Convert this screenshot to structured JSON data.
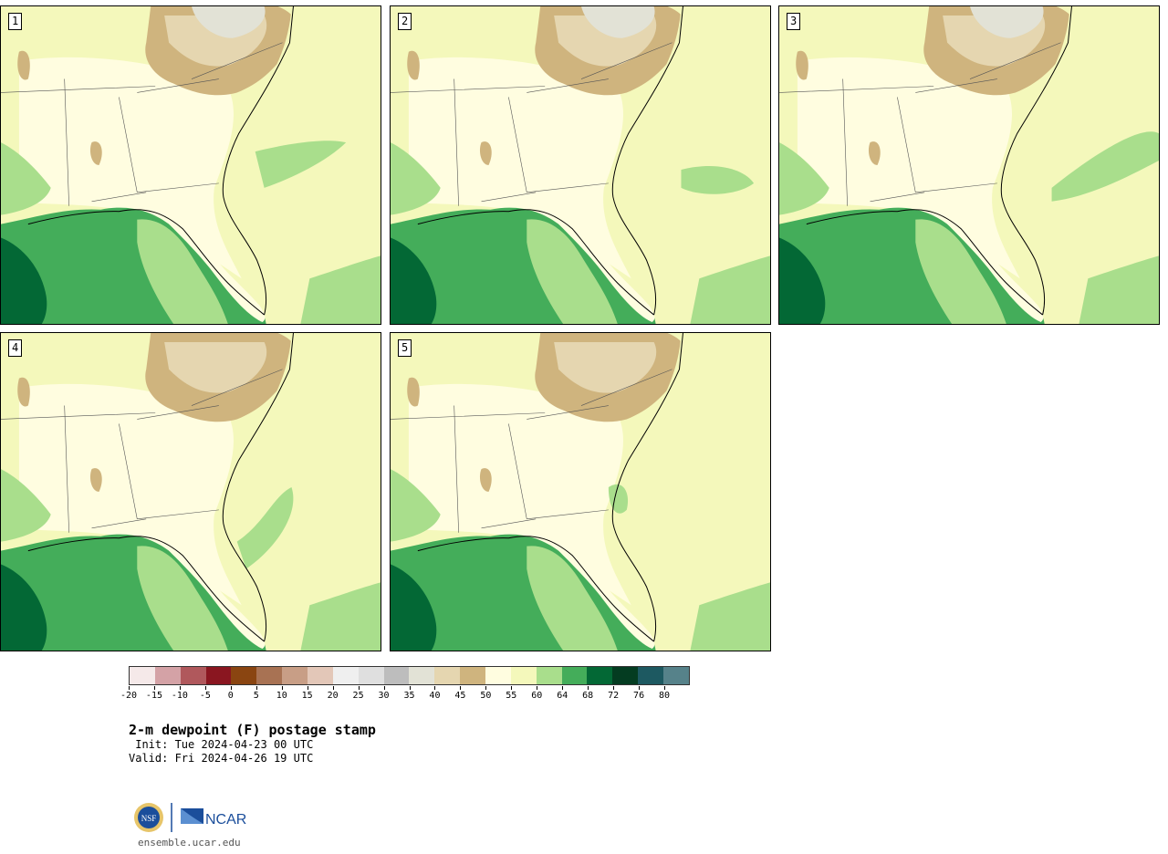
{
  "figure": {
    "title": "2-m dewpoint (F) postage stamp",
    "init": " Init: Tue 2024-04-23 00 UTC",
    "valid": "Valid: Fri 2024-04-26 19 UTC",
    "site": "ensemble.ucar.edu",
    "logo_text": "NCAR",
    "nsf_text": "NSF"
  },
  "panels": [
    {
      "label": "1"
    },
    {
      "label": "2"
    },
    {
      "label": "3"
    },
    {
      "label": "4"
    },
    {
      "label": "5"
    }
  ],
  "colorbar": {
    "ticks": [
      "-20",
      "-15",
      "-10",
      "-5",
      "0",
      "5",
      "10",
      "15",
      "20",
      "25",
      "30",
      "35",
      "40",
      "45",
      "50",
      "55",
      "60",
      "64",
      "68",
      "72",
      "76",
      "80"
    ],
    "colors": [
      "#f5e9e9",
      "#d4a2a6",
      "#b0585c",
      "#8a1620",
      "#8a4511",
      "#a87253",
      "#c89e86",
      "#e3c7b8",
      "#efefef",
      "#dfdfdf",
      "#bdbdbd",
      "#e2e2d6",
      "#e5d6b0",
      "#cfb47e",
      "#fffde0",
      "#f4f8bb",
      "#a9de8c",
      "#44ad5a",
      "#036835",
      "#043c21",
      "#1d5961",
      "#56828a"
    ]
  }
}
